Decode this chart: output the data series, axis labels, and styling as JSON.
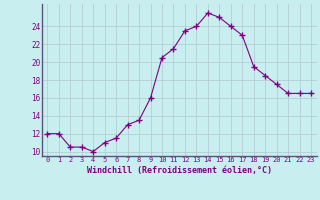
{
  "x": [
    0,
    1,
    2,
    3,
    4,
    5,
    6,
    7,
    8,
    9,
    10,
    11,
    12,
    13,
    14,
    15,
    16,
    17,
    18,
    19,
    20,
    21,
    22,
    23
  ],
  "y": [
    12,
    12,
    10.5,
    10.5,
    10,
    11,
    11.5,
    13,
    13.5,
    16,
    20.5,
    21.5,
    23.5,
    24,
    25.5,
    25,
    24,
    23,
    19.5,
    18.5,
    17.5,
    16.5,
    16.5,
    16.5
  ],
  "line_color": "#800080",
  "marker": "+",
  "marker_color": "#800080",
  "background_color": "#c8eef0",
  "grid_color": "#b0c8d0",
  "xlabel": "Windchill (Refroidissement éolien,°C)",
  "xlabel_color": "#800080",
  "tick_color": "#800080",
  "ylim": [
    9.5,
    26.5
  ],
  "xlim": [
    -0.5,
    23.5
  ],
  "yticks": [
    10,
    12,
    14,
    16,
    18,
    20,
    22,
    24
  ],
  "xticks": [
    0,
    1,
    2,
    3,
    4,
    5,
    6,
    7,
    8,
    9,
    10,
    11,
    12,
    13,
    14,
    15,
    16,
    17,
    18,
    19,
    20,
    21,
    22,
    23
  ]
}
